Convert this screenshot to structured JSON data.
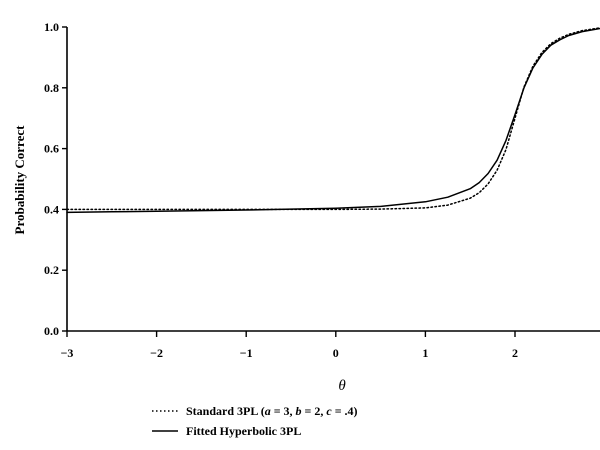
{
  "chart_data": {
    "type": "line",
    "title": "",
    "xlabel": "θ",
    "ylabel": "Probability Correct",
    "xlim": [
      -3,
      3
    ],
    "ylim": [
      0,
      1
    ],
    "xticks": [
      -3,
      -2,
      -1,
      0,
      1,
      2
    ],
    "xtick_labels": [
      "−3",
      "−2",
      "−1",
      "0",
      "1",
      "2"
    ],
    "yticks": [
      0,
      0.2,
      0.4,
      0.6,
      0.8,
      1.0
    ],
    "ytick_labels": [
      "0.0",
      "0.2",
      "0.4",
      "0.6",
      "0.8",
      "1.0"
    ],
    "grid": false,
    "legend_position": "bottom",
    "series": [
      {
        "name": "Standard 3PL (a = 3, b = 2, c = .4)",
        "style": "dotted",
        "x": [
          -3,
          -2.5,
          -2,
          -1.5,
          -1,
          -0.5,
          0,
          0.5,
          1,
          1.25,
          1.5,
          1.6,
          1.7,
          1.8,
          1.9,
          2,
          2.1,
          2.2,
          2.3,
          2.4,
          2.5,
          2.6,
          2.75,
          3
        ],
        "y": [
          0.4,
          0.4,
          0.4,
          0.4,
          0.4,
          0.4,
          0.4,
          0.401,
          0.405,
          0.414,
          0.437,
          0.455,
          0.484,
          0.529,
          0.597,
          0.7,
          0.803,
          0.871,
          0.916,
          0.945,
          0.963,
          0.976,
          0.988,
          0.997
        ]
      },
      {
        "name": "Fitted Hyperbolic 3PL",
        "style": "solid",
        "x": [
          -3,
          -2.5,
          -2,
          -1.5,
          -1,
          -0.5,
          0,
          0.5,
          1,
          1.25,
          1.5,
          1.6,
          1.7,
          1.8,
          1.9,
          2,
          2.1,
          2.2,
          2.3,
          2.4,
          2.5,
          2.6,
          2.75,
          3
        ],
        "y": [
          0.39,
          0.392,
          0.394,
          0.396,
          0.398,
          0.401,
          0.404,
          0.41,
          0.425,
          0.44,
          0.468,
          0.488,
          0.518,
          0.562,
          0.627,
          0.712,
          0.8,
          0.865,
          0.91,
          0.94,
          0.958,
          0.972,
          0.985,
          0.995
        ]
      }
    ],
    "legend": [
      {
        "label_pre": "Standard 3PL (",
        "a_sym": "a",
        "a_val": " = 3, ",
        "b_sym": "b",
        "b_val": " = 2, ",
        "c_sym": "c",
        "c_val": " = .4)",
        "style": "dotted"
      },
      {
        "label": "Fitted Hyperbolic 3PL",
        "style": "solid"
      }
    ]
  }
}
